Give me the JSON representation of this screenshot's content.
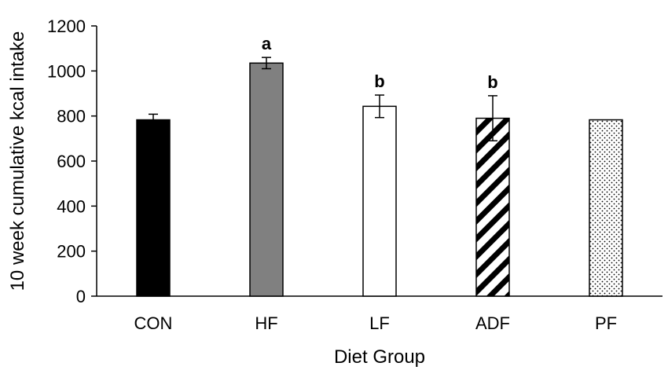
{
  "chart_data": {
    "type": "bar",
    "title": "",
    "xlabel": "Diet Group",
    "ylabel": "10 week cumulative kcal intake",
    "ylim": [
      0,
      1200
    ],
    "yticks": [
      "0",
      "200",
      "400",
      "600",
      "800",
      "1000",
      "1200"
    ],
    "grid": false,
    "legend": "none",
    "categories": [
      "CON",
      "HF",
      "LF",
      "ADF",
      "PF"
    ],
    "values": [
      783,
      1035,
      843,
      790,
      783
    ],
    "errors": [
      25,
      25,
      50,
      100,
      0
    ],
    "significance_labels": [
      "",
      "a",
      "b",
      "b",
      ""
    ],
    "fills": [
      "solid-black",
      "solid-gray",
      "white",
      "diagonal-hatch",
      "dotted"
    ],
    "colors": {
      "black": "#000000",
      "gray": "#808080",
      "white": "#ffffff"
    }
  }
}
